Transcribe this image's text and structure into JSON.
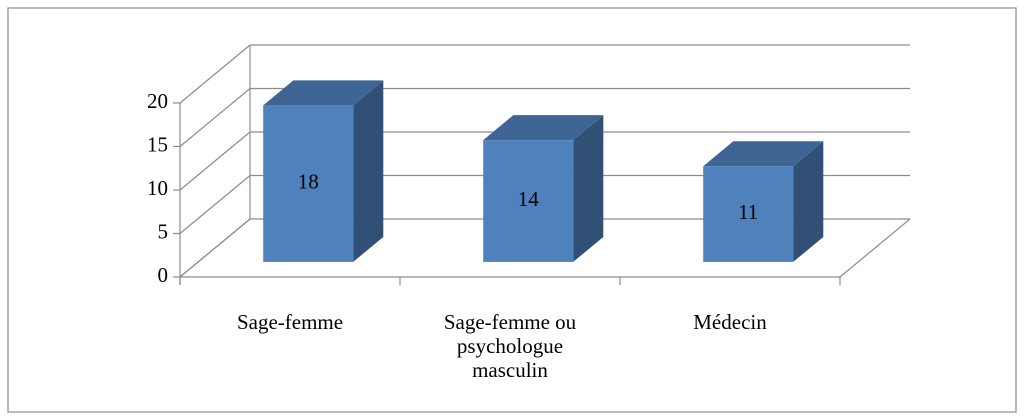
{
  "chart_data": {
    "type": "bar3d",
    "categories": [
      "Sage-femme",
      "Sage-femme ou psychologue masculin",
      "Médecin"
    ],
    "values": [
      18,
      14,
      11
    ],
    "color": "#4f81bd",
    "ylim": [
      0,
      20
    ],
    "yticks": [
      0,
      5,
      10,
      15,
      20
    ],
    "grid": true
  }
}
